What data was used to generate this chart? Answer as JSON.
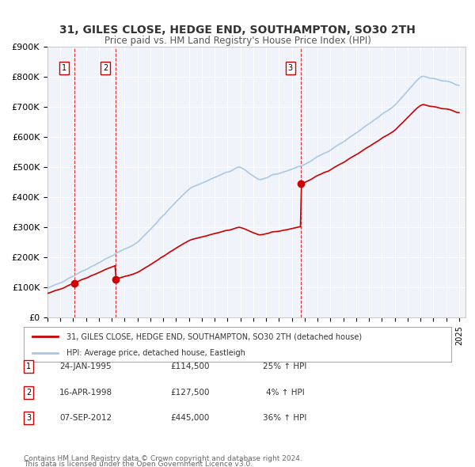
{
  "title_line1": "31, GILES CLOSE, HEDGE END, SOUTHAMPTON, SO30 2TH",
  "title_line2": "Price paid vs. HM Land Registry's House Price Index (HPI)",
  "legend_label1": "31, GILES CLOSE, HEDGE END, SOUTHAMPTON, SO30 2TH (detached house)",
  "legend_label2": "HPI: Average price, detached house, Eastleigh",
  "footer_line1": "Contains HM Land Registry data © Crown copyright and database right 2024.",
  "footer_line2": "This data is licensed under the Open Government Licence v3.0.",
  "hpi_color": "#a8c8e8",
  "price_color": "#cc0000",
  "vline_color": "#cc0000",
  "purchase_color": "#cc0000",
  "background_color": "#f0f4fa",
  "plot_bg_color": "#f0f4fa",
  "transactions": [
    {
      "num": 1,
      "date_num": 1995.07,
      "price": 114500,
      "label": "1",
      "date_str": "24-JAN-1995",
      "price_str": "£114,500",
      "pct": "25%",
      "dir": "↑"
    },
    {
      "num": 2,
      "date_num": 1998.29,
      "price": 127500,
      "label": "2",
      "date_str": "16-APR-1998",
      "price_str": "£127,500",
      "pct": "4%",
      "dir": "↑"
    },
    {
      "num": 3,
      "date_num": 2012.68,
      "price": 445000,
      "label": "3",
      "date_str": "07-SEP-2012",
      "price_str": "£445,000",
      "pct": "36%",
      "dir": "↑"
    }
  ],
  "xmin": 1993.0,
  "xmax": 2025.5,
  "ymin": 0,
  "ymax": 900000,
  "yticks": [
    0,
    100000,
    200000,
    300000,
    400000,
    500000,
    600000,
    700000,
    800000,
    900000
  ],
  "ytick_labels": [
    "£0",
    "£100K",
    "£200K",
    "£300K",
    "£400K",
    "£500K",
    "£600K",
    "£700K",
    "£800K",
    "£900K"
  ]
}
